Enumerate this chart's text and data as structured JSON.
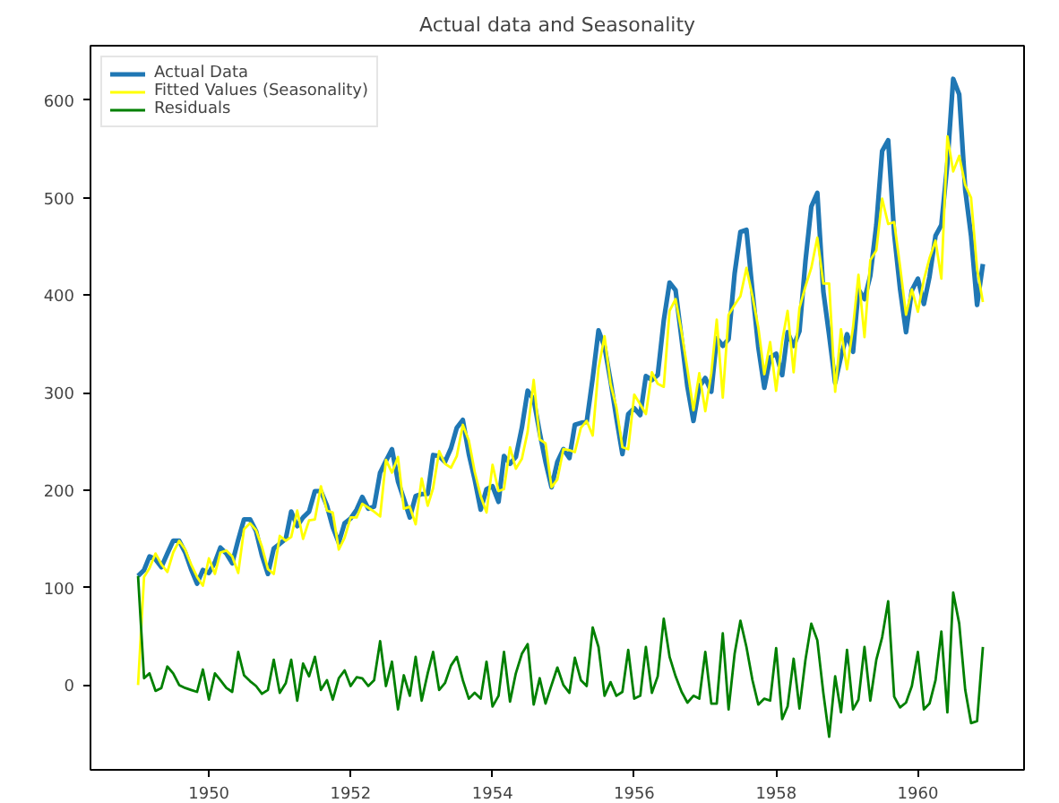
{
  "chart_data": {
    "type": "line",
    "title": "Actual data and Seasonality",
    "x": [
      "1949-01",
      "1949-02",
      "1949-03",
      "1949-04",
      "1949-05",
      "1949-06",
      "1949-07",
      "1949-08",
      "1949-09",
      "1949-10",
      "1949-11",
      "1949-12",
      "1950-01",
      "1950-02",
      "1950-03",
      "1950-04",
      "1950-05",
      "1950-06",
      "1950-07",
      "1950-08",
      "1950-09",
      "1950-10",
      "1950-11",
      "1950-12",
      "1951-01",
      "1951-02",
      "1951-03",
      "1951-04",
      "1951-05",
      "1951-06",
      "1951-07",
      "1951-08",
      "1951-09",
      "1951-10",
      "1951-11",
      "1951-12",
      "1952-01",
      "1952-02",
      "1952-03",
      "1952-04",
      "1952-05",
      "1952-06",
      "1952-07",
      "1952-08",
      "1952-09",
      "1952-10",
      "1952-11",
      "1952-12",
      "1953-01",
      "1953-02",
      "1953-03",
      "1953-04",
      "1953-05",
      "1953-06",
      "1953-07",
      "1953-08",
      "1953-09",
      "1953-10",
      "1953-11",
      "1953-12",
      "1954-01",
      "1954-02",
      "1954-03",
      "1954-04",
      "1954-05",
      "1954-06",
      "1954-07",
      "1954-08",
      "1954-09",
      "1954-10",
      "1954-11",
      "1954-12",
      "1955-01",
      "1955-02",
      "1955-03",
      "1955-04",
      "1955-05",
      "1955-06",
      "1955-07",
      "1955-08",
      "1955-09",
      "1955-10",
      "1955-11",
      "1955-12",
      "1956-01",
      "1956-02",
      "1956-03",
      "1956-04",
      "1956-05",
      "1956-06",
      "1956-07",
      "1956-08",
      "1956-09",
      "1956-10",
      "1956-11",
      "1956-12",
      "1957-01",
      "1957-02",
      "1957-03",
      "1957-04",
      "1957-05",
      "1957-06",
      "1957-07",
      "1957-08",
      "1957-09",
      "1957-10",
      "1957-11",
      "1957-12",
      "1958-01",
      "1958-02",
      "1958-03",
      "1958-04",
      "1958-05",
      "1958-06",
      "1958-07",
      "1958-08",
      "1958-09",
      "1958-10",
      "1958-11",
      "1958-12",
      "1959-01",
      "1959-02",
      "1959-03",
      "1959-04",
      "1959-05",
      "1959-06",
      "1959-07",
      "1959-08",
      "1959-09",
      "1959-10",
      "1959-11",
      "1959-12",
      "1960-01",
      "1960-02",
      "1960-03",
      "1960-04",
      "1960-05",
      "1960-06",
      "1960-07",
      "1960-08",
      "1960-09",
      "1960-10",
      "1960-11",
      "1960-12"
    ],
    "series": [
      {
        "name": "Actual Data",
        "color": "#1f77b4",
        "values": [
          112,
          118,
          132,
          129,
          121,
          135,
          148,
          148,
          136,
          119,
          104,
          118,
          115,
          126,
          141,
          135,
          125,
          149,
          170,
          170,
          158,
          133,
          114,
          140,
          145,
          150,
          178,
          163,
          172,
          178,
          199,
          199,
          184,
          162,
          146,
          166,
          171,
          180,
          193,
          181,
          183,
          218,
          230,
          242,
          209,
          191,
          172,
          194,
          196,
          196,
          236,
          235,
          229,
          243,
          264,
          272,
          237,
          211,
          180,
          201,
          204,
          188,
          235,
          227,
          234,
          264,
          302,
          293,
          259,
          229,
          203,
          229,
          242,
          233,
          267,
          269,
          270,
          315,
          364,
          347,
          312,
          274,
          237,
          278,
          284,
          277,
          317,
          313,
          318,
          374,
          413,
          405,
          355,
          306,
          271,
          306,
          315,
          301,
          356,
          348,
          355,
          422,
          465,
          467,
          404,
          347,
          305,
          336,
          340,
          318,
          362,
          348,
          363,
          435,
          491,
          505,
          404,
          359,
          310,
          337,
          360,
          342,
          406,
          396,
          420,
          472,
          548,
          559,
          463,
          407,
          362,
          405,
          417,
          391,
          419,
          461,
          472,
          535,
          622,
          606,
          508,
          461,
          390,
          432
        ]
      },
      {
        "name": "Fitted Values (Seasonality)",
        "color": "#ffff00",
        "values": [
          0,
          111,
          120,
          135,
          124,
          116,
          136,
          148,
          139,
          124,
          111,
          102,
          130,
          114,
          136,
          138,
          132,
          115,
          160,
          166,
          159,
          142,
          119,
          114,
          153,
          148,
          152,
          179,
          150,
          169,
          170,
          204,
          179,
          177,
          139,
          151,
          172,
          172,
          186,
          182,
          178,
          173,
          231,
          218,
          234,
          181,
          183,
          165,
          212,
          184,
          202,
          240,
          227,
          223,
          235,
          267,
          251,
          219,
          194,
          177,
          226,
          199,
          201,
          244,
          222,
          232,
          260,
          313,
          252,
          248,
          203,
          211,
          242,
          241,
          239,
          264,
          271,
          256,
          325,
          358,
          309,
          285,
          244,
          242,
          298,
          288,
          278,
          321,
          309,
          306,
          384,
          396,
          362,
          324,
          282,
          320,
          281,
          320,
          375,
          295,
          380,
          390,
          399,
          428,
          399,
          367,
          319,
          352,
          302,
          353,
          384,
          321,
          387,
          409,
          428,
          459,
          412,
          412,
          301,
          365,
          324,
          367,
          421,
          357,
          436,
          446,
          499,
          473,
          475,
          430,
          380,
          406,
          383,
          416,
          438,
          456,
          417,
          563,
          527,
          543,
          513,
          500,
          427,
          393
        ]
      },
      {
        "name": "Residuals",
        "color": "#008000",
        "values": [
          112,
          7,
          12,
          -6,
          -3,
          19,
          12,
          0,
          -3,
          -5,
          -7,
          16,
          -15,
          12,
          5,
          -3,
          -7,
          34,
          10,
          4,
          -1,
          -9,
          -5,
          26,
          -8,
          2,
          26,
          -16,
          22,
          9,
          29,
          -5,
          5,
          -15,
          7,
          15,
          -1,
          8,
          7,
          -1,
          5,
          45,
          -1,
          24,
          -25,
          10,
          -11,
          29,
          -16,
          12,
          34,
          -5,
          2,
          20,
          29,
          5,
          -14,
          -8,
          -14,
          24,
          -22,
          -11,
          34,
          -17,
          12,
          32,
          42,
          -20,
          7,
          -19,
          0,
          18,
          0,
          -8,
          28,
          5,
          -1,
          59,
          39,
          -11,
          3,
          -11,
          -7,
          36,
          -14,
          -11,
          39,
          -8,
          9,
          68,
          29,
          9,
          -7,
          -18,
          -11,
          -14,
          34,
          -19,
          -19,
          53,
          -25,
          32,
          66,
          39,
          5,
          -20,
          -14,
          -16,
          38,
          -35,
          -22,
          27,
          -24,
          26,
          63,
          46,
          -8,
          -53,
          9,
          -28,
          36,
          -25,
          -15,
          39,
          -16,
          26,
          49,
          86,
          -12,
          -23,
          -18,
          -1,
          34,
          -25,
          -19,
          5,
          55,
          -28,
          95,
          63,
          -5,
          -39,
          -37,
          39
        ]
      }
    ],
    "xlim": [
      "1948-05",
      "1961-07"
    ],
    "xticks": [
      "1950",
      "1952",
      "1954",
      "1956",
      "1958",
      "1960"
    ],
    "ylim": [
      -87,
      656
    ],
    "yticks": [
      0,
      100,
      200,
      300,
      400,
      500,
      600
    ],
    "grid": false,
    "legend": "top left",
    "marker": "none",
    "line_style": "solid"
  }
}
